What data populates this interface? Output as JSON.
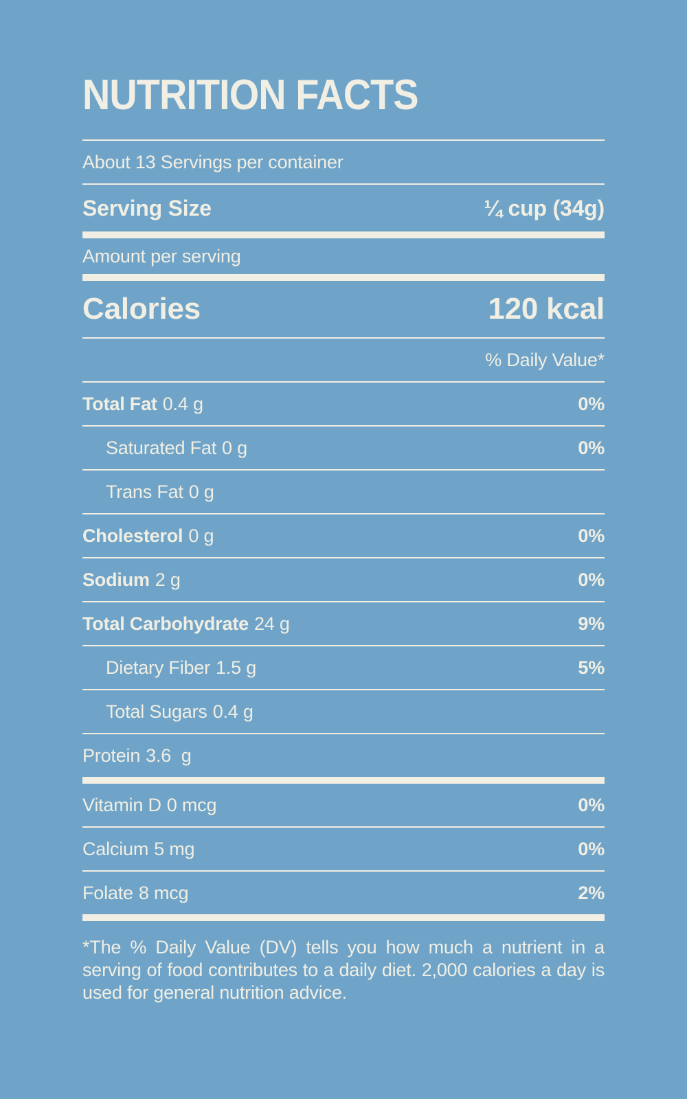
{
  "colors": {
    "background": "#6FA4C8",
    "foreground": "#F1EEE3"
  },
  "header": {
    "title": "NUTRITION FACTS"
  },
  "servings": {
    "per_container": "About 13 Servings per container",
    "serving_size_label": "Serving Size",
    "serving_size_value": "¼ cup (34g)"
  },
  "amount_per_serving": "Amount per serving",
  "calories": {
    "label": "Calories",
    "value": "120 kcal"
  },
  "daily_value_header": "% Daily Value*",
  "nutrients": [
    {
      "name": "Total Fat",
      "amount": "0.4 g",
      "dv": "0%"
    },
    {
      "name": "Saturated Fat",
      "amount": "0 g",
      "dv": "0%"
    },
    {
      "name": "Trans Fat",
      "amount": "0 g",
      "dv": ""
    },
    {
      "name": "Cholesterol",
      "amount": "0 g",
      "dv": "0%"
    },
    {
      "name": "Sodium",
      "amount": "2 g",
      "dv": "0%"
    },
    {
      "name": "Total Carbohydrate",
      "amount": "24 g",
      "dv": "9%"
    },
    {
      "name": "Dietary Fiber",
      "amount": "1.5 g",
      "dv": "5%"
    },
    {
      "name": "Total Sugars",
      "amount": "0.4 g",
      "dv": ""
    },
    {
      "name": "Protein",
      "amount": "3.6  g",
      "dv": ""
    }
  ],
  "micronutrients": [
    {
      "name": "Vitamin D",
      "amount": "0 mcg",
      "dv": "0%"
    },
    {
      "name": "Calcium",
      "amount": "5 mg",
      "dv": "0%"
    },
    {
      "name": "Folate",
      "amount": "8 mcg",
      "dv": "2%"
    }
  ],
  "footnote": "*The % Daily Value (DV) tells you how much a nutrient in a serving of food contributes to a daily diet. 2,000 calories a day is used for general nutrition advice."
}
